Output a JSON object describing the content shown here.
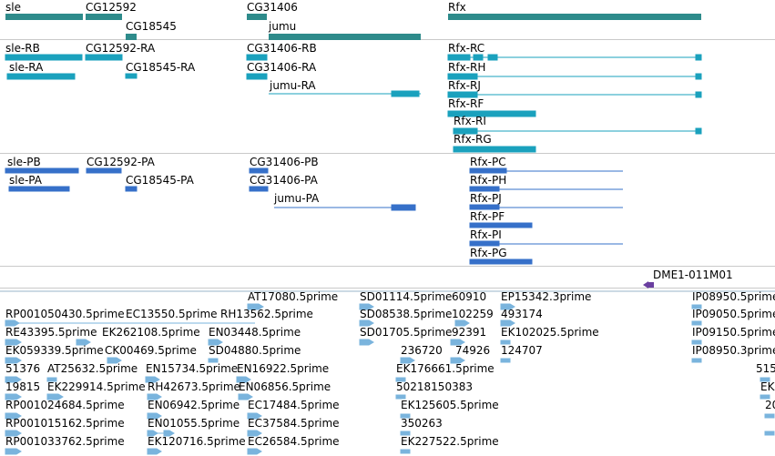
{
  "colors": {
    "gene": "#2e8b8b",
    "transcript_ra": "#1aa1bd",
    "transcript_pa": "#3670c9",
    "construct": "#6a3fa0",
    "est": "#7ab4dd",
    "separator": "#c9c9c9"
  },
  "genes": [
    "sle",
    "CG12592",
    "CG18545",
    "CG31406",
    "jumu",
    "Rfx"
  ],
  "rna_transcripts": [
    "sle-RB",
    "sle-RA",
    "CG12592-RA",
    "CG18545-RA",
    "CG31406-RB",
    "CG31406-RA",
    "jumu-RA",
    "Rfx-RC",
    "Rfx-RH",
    "Rfx-RJ",
    "Rfx-RF",
    "Rfx-RI",
    "Rfx-RG"
  ],
  "protein_transcripts": [
    "sle-PB",
    "sle-PA",
    "CG12592-PA",
    "CG18545-PA",
    "CG31406-PB",
    "CG31406-PA",
    "jumu-PA",
    "Rfx-PC",
    "Rfx-PH",
    "Rfx-PJ",
    "Rfx-PF",
    "Rfx-PI",
    "Rfx-PG"
  ],
  "construct": "DME1-011M01",
  "ests": [
    "AT17080.5prime",
    "SD01114.5prime",
    "60910",
    "EP15342.3prime",
    "IP08950.5prime",
    "RP001050430.5prime",
    "EC13550.5prime",
    "RH13562.5prime",
    "SD08538.5prime",
    "102259",
    "493174",
    "IP09050.5prime",
    "RE43395.5prime",
    "EK262108.5prime",
    "EN03448.5prime",
    "SD01705.5prime",
    "92391",
    "EK102025.5prime",
    "IP09150.5prime",
    "EK059339.5prime",
    "CK00469.5prime",
    "SD04880.5prime",
    "236720",
    "74926",
    "124707",
    "IP08950.3prime",
    "51376",
    "AT25632.5prime",
    "EN15734.5prime",
    "EN16922.5prime",
    "EK176661.5prime",
    "515",
    "19815",
    "EK229914.5prime",
    "RH42673.5prime",
    "EN06856.5prime",
    "50218150383",
    "EK",
    "RP001024684.5prime",
    "EN06942.5prime",
    "EC17484.5prime",
    "EK125605.5prime",
    "20",
    "RP001015162.5prime",
    "EN01055.5prime",
    "EC37584.5prime",
    "350263",
    "RP001033762.5prime",
    "EK120716.5prime",
    "EC26584.5prime",
    "EK227522.5prime"
  ]
}
